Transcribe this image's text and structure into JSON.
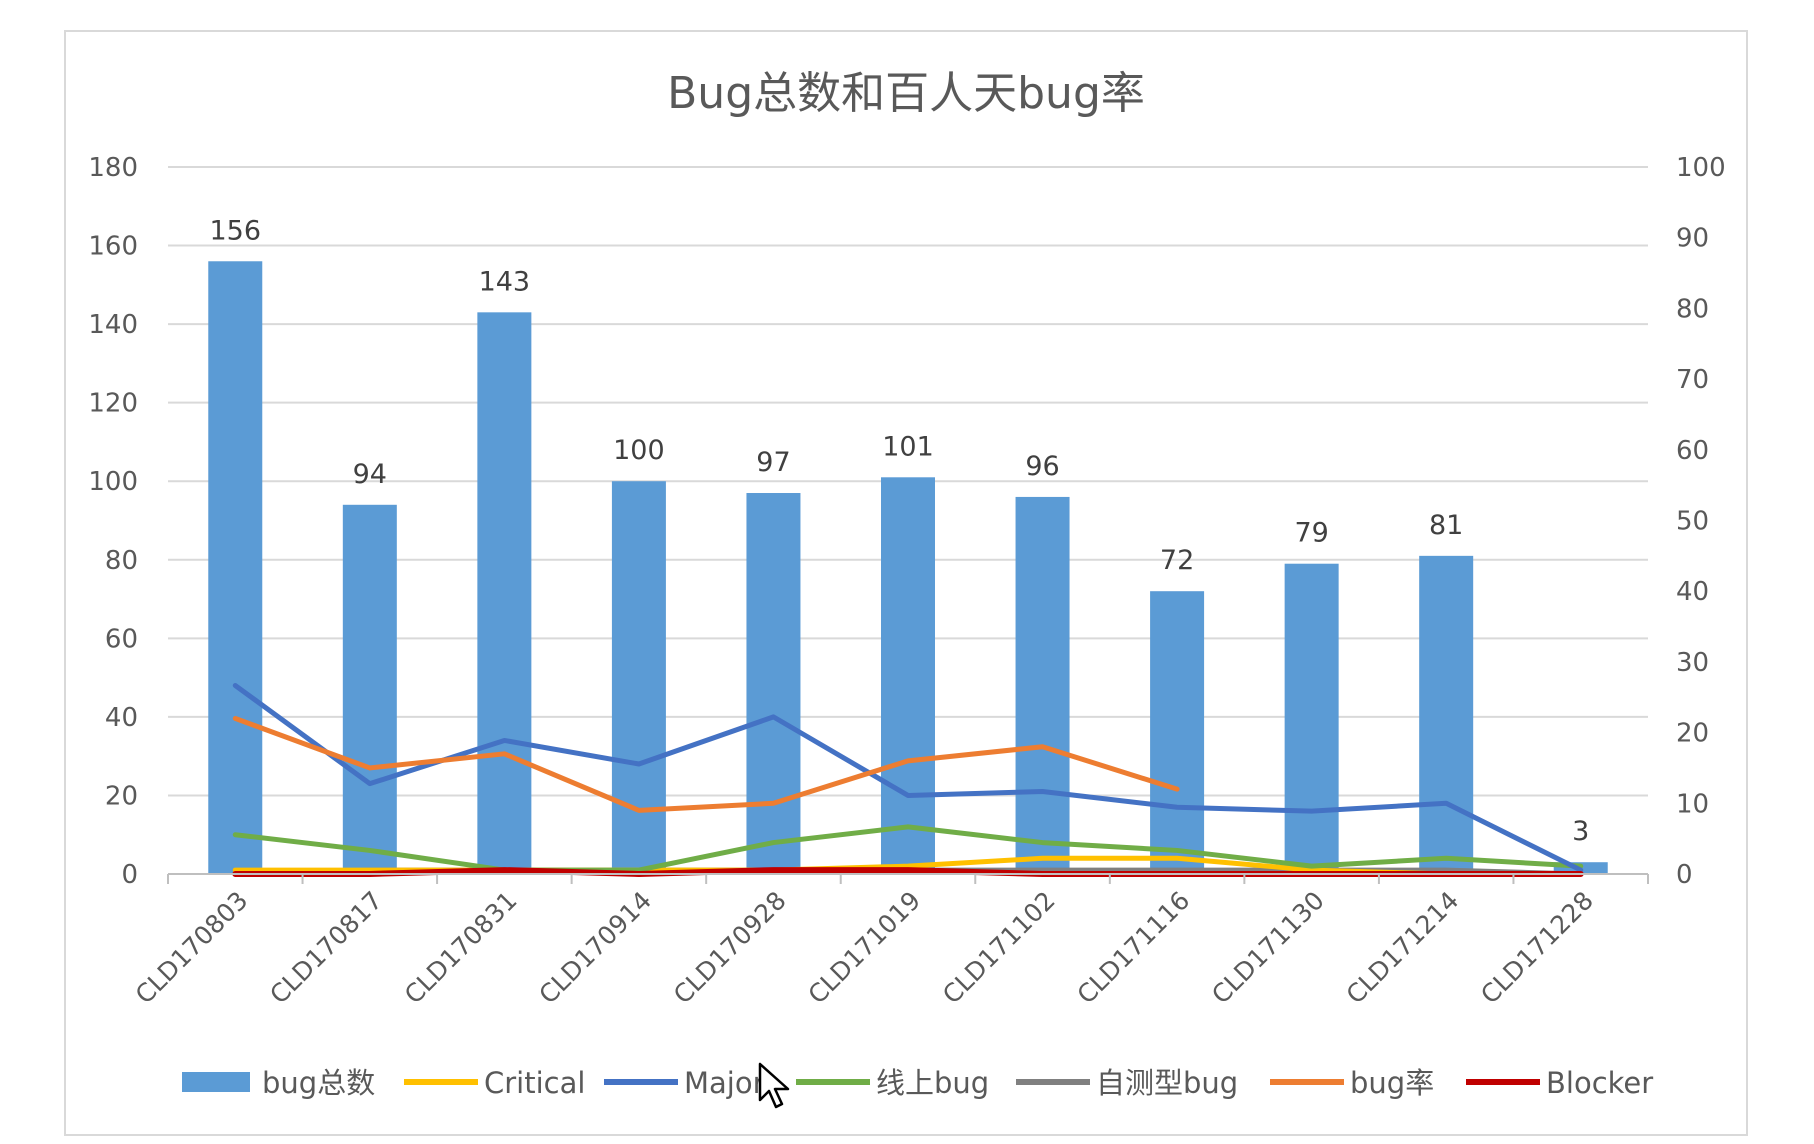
{
  "chart_data": {
    "type": "bar",
    "title": "Bug总数和百人天bug率",
    "categories": [
      "CLD170803",
      "CLD170817",
      "CLD170831",
      "CLD170914",
      "CLD170928",
      "CLD171019",
      "CLD171102",
      "CLD171116",
      "CLD171130",
      "CLD171214",
      "CLD171228"
    ],
    "ylim": [
      0,
      180
    ],
    "y_ticks": [
      0,
      20,
      40,
      60,
      80,
      100,
      120,
      140,
      160,
      180
    ],
    "y2lim": [
      0,
      100
    ],
    "y2_ticks": [
      0,
      10,
      20,
      30,
      40,
      50,
      60,
      70,
      80,
      90,
      100
    ],
    "grid": true,
    "legend_position": "bottom",
    "bar_series": {
      "name": "bug总数",
      "color": "#5b9bd5",
      "values": [
        156,
        94,
        143,
        100,
        97,
        101,
        96,
        72,
        79,
        81,
        3
      ]
    },
    "line_series": [
      {
        "name": "Critical",
        "color": "#ffc000",
        "axis": "left",
        "values": [
          1,
          1,
          1,
          1,
          1,
          2,
          4,
          4,
          1,
          0,
          0
        ]
      },
      {
        "name": "Major",
        "color": "#4472c4",
        "axis": "left",
        "values": [
          48,
          23,
          34,
          28,
          40,
          20,
          21,
          17,
          16,
          18,
          1
        ]
      },
      {
        "name": "线上bug",
        "color": "#70ad47",
        "axis": "left",
        "values": [
          10,
          6,
          1,
          1,
          8,
          12,
          8,
          6,
          2,
          4,
          2
        ]
      },
      {
        "name": "自测型bug",
        "color": "#808080",
        "axis": "left",
        "values": [
          0,
          1,
          1,
          1,
          1,
          1,
          1,
          1,
          1,
          1,
          0
        ]
      },
      {
        "name": "bug率",
        "color": "#ed7d31",
        "axis": "right",
        "values": [
          22,
          15,
          17,
          9,
          10,
          16,
          18,
          12,
          null,
          null,
          null
        ]
      },
      {
        "name": "Blocker",
        "color": "#c00000",
        "axis": "left",
        "values": [
          0,
          0,
          1,
          0,
          1,
          1,
          0,
          0,
          0,
          0,
          0
        ]
      }
    ],
    "legend_order": [
      "bug总数",
      "Critical",
      "Major",
      "线上bug",
      "自测型bug",
      "bug率",
      "Blocker"
    ]
  }
}
